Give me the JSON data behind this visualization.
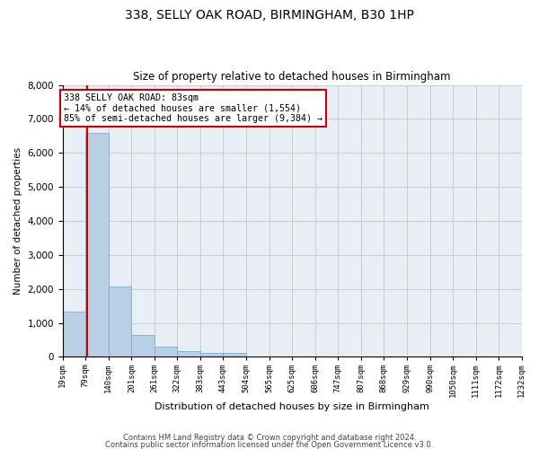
{
  "title_line1": "338, SELLY OAK ROAD, BIRMINGHAM, B30 1HP",
  "title_line2": "Size of property relative to detached houses in Birmingham",
  "xlabel": "Distribution of detached houses by size in Birmingham",
  "ylabel": "Number of detached properties",
  "bin_labels": [
    "19sqm",
    "79sqm",
    "140sqm",
    "201sqm",
    "261sqm",
    "322sqm",
    "383sqm",
    "443sqm",
    "504sqm",
    "565sqm",
    "625sqm",
    "686sqm",
    "747sqm",
    "807sqm",
    "868sqm",
    "929sqm",
    "990sqm",
    "1050sqm",
    "1111sqm",
    "1172sqm",
    "1232sqm"
  ],
  "bar_values": [
    1320,
    6600,
    2080,
    650,
    305,
    160,
    105,
    105,
    0,
    0,
    0,
    0,
    0,
    0,
    0,
    0,
    0,
    0,
    0,
    0
  ],
  "bar_color": "#b8cfe4",
  "bar_edge_color": "#7bafd4",
  "bin_edges": [
    19,
    79,
    140,
    201,
    261,
    322,
    383,
    443,
    504,
    565,
    625,
    686,
    747,
    807,
    868,
    929,
    990,
    1050,
    1111,
    1172,
    1232
  ],
  "vline_x": 83,
  "vline_color": "#cc0000",
  "annotation_text": "338 SELLY OAK ROAD: 83sqm\n← 14% of detached houses are smaller (1,554)\n85% of semi-detached houses are larger (9,384) →",
  "annotation_box_color": "#cc0000",
  "ylim": [
    0,
    8000
  ],
  "yticks": [
    0,
    1000,
    2000,
    3000,
    4000,
    5000,
    6000,
    7000,
    8000
  ],
  "footer_line1": "Contains HM Land Registry data © Crown copyright and database right 2024.",
  "footer_line2": "Contains public sector information licensed under the Open Government Licence v3.0.",
  "bg_color": "#ffffff",
  "plot_bg_color": "#e8eef5",
  "grid_color": "#cccccc",
  "figsize": [
    6.0,
    5.0
  ],
  "dpi": 100
}
